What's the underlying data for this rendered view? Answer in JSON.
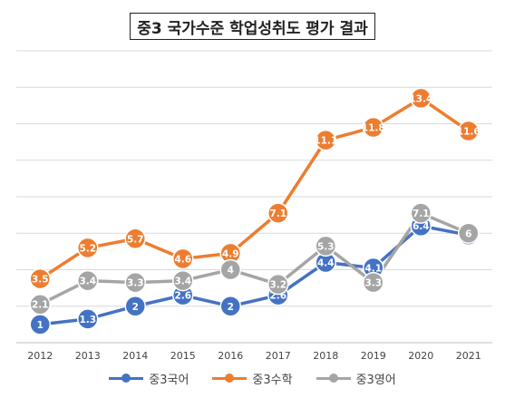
{
  "chart_data": {
    "type": "line",
    "title": "중3 국가수준 학업성취도 평가 결과",
    "categories": [
      "2012",
      "2013",
      "2014",
      "2015",
      "2016",
      "2017",
      "2018",
      "2019",
      "2020",
      "2021"
    ],
    "series": [
      {
        "name": "중3국어",
        "color": "#4472C4",
        "values": [
          1,
          1.3,
          2,
          2.6,
          2,
          2.6,
          4.4,
          4.1,
          6.4,
          5.9
        ]
      },
      {
        "name": "중3수학",
        "color": "#ED7D31",
        "values": [
          3.5,
          5.2,
          5.7,
          4.6,
          4.9,
          7.1,
          11.1,
          11.8,
          13.4,
          11.6
        ]
      },
      {
        "name": "중3영어",
        "color": "#A5A5A5",
        "values": [
          2.1,
          3.4,
          3.3,
          3.4,
          4,
          3.2,
          5.3,
          3.3,
          7.1,
          6
        ]
      }
    ],
    "ylim": [
      0,
      16
    ],
    "grid": true,
    "legend_position": "bottom"
  }
}
